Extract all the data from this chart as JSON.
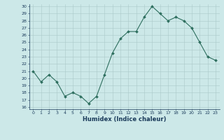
{
  "x": [
    0,
    1,
    2,
    3,
    4,
    5,
    6,
    7,
    8,
    9,
    10,
    11,
    12,
    13,
    14,
    15,
    16,
    17,
    18,
    19,
    20,
    21,
    22,
    23
  ],
  "y": [
    21,
    19.5,
    20.5,
    19.5,
    17.5,
    18,
    17.5,
    16.5,
    17.5,
    20.5,
    23.5,
    25.5,
    26.5,
    26.5,
    28.5,
    30,
    29,
    28,
    28.5,
    28,
    27,
    25,
    23,
    22.5
  ],
  "line_color": "#2d6e5e",
  "marker": "D",
  "marker_size": 2.0,
  "bg_color": "#cce8e8",
  "grid_color": "#aac8c8",
  "xlabel": "Humidex (Indice chaleur)",
  "ylim": [
    16,
    30
  ],
  "xlim": [
    -0.5,
    23.5
  ],
  "yticks": [
    16,
    17,
    18,
    19,
    20,
    21,
    22,
    23,
    24,
    25,
    26,
    27,
    28,
    29,
    30
  ],
  "xticks": [
    0,
    1,
    2,
    3,
    4,
    5,
    6,
    7,
    8,
    9,
    10,
    11,
    12,
    13,
    14,
    15,
    16,
    17,
    18,
    19,
    20,
    21,
    22,
    23
  ],
  "tick_fontsize": 4.5,
  "xlabel_fontsize": 6.0,
  "label_color": "#1a3a5a",
  "linewidth": 0.8
}
